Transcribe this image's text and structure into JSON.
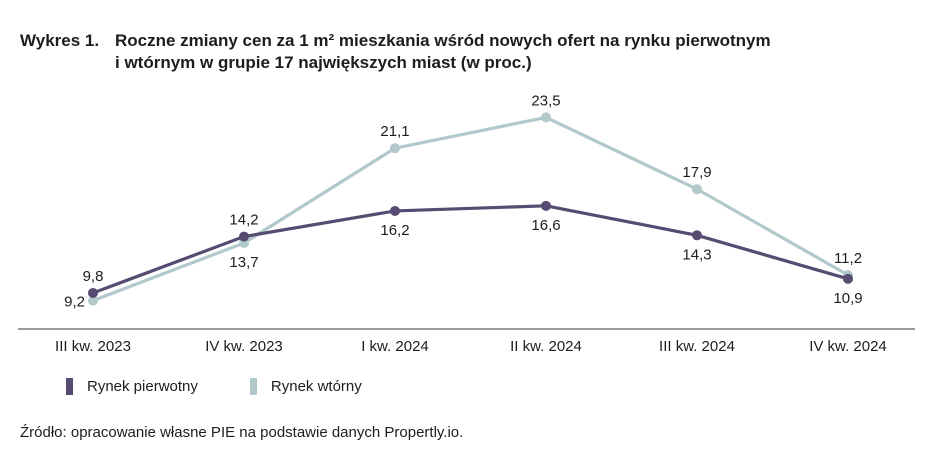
{
  "title": {
    "prefix": "Wykres 1.",
    "line1": "Roczne zmiany cen za 1 m² mieszkania wśród nowych ofert na rynku pierwotnym",
    "line2": "i wtórnym w grupie 17 największych miast (w proc.)"
  },
  "source": "Źródło: opracowanie własne PIE na podstawie danych Propertly.io.",
  "colors": {
    "primary": "#564b70",
    "secondary": "#b2c9cc",
    "axis": "#333333",
    "text": "#1d1d1f"
  },
  "chart_data": {
    "type": "line",
    "title": "Roczne zmiany cen za 1 m² mieszkania wśród nowych ofert na rynku pierwotnym i wtórnym w grupie 17 największych miast (w proc.)",
    "xlabel": "",
    "ylabel": "",
    "ylim": [
      0,
      25
    ],
    "grid": false,
    "legend_position": "bottom-left",
    "categories": [
      "III kw. 2023",
      "IV kw. 2023",
      "I kw. 2024",
      "II kw. 2024",
      "III kw. 2024",
      "IV kw. 2024"
    ],
    "series": [
      {
        "name": "Rynek pierwotny",
        "values": [
          9.8,
          14.2,
          16.2,
          16.6,
          14.3,
          10.9
        ],
        "labels": [
          "9,8",
          "14,2",
          "16,2",
          "16,6",
          "14,3",
          "10,9"
        ],
        "label_positions": [
          "above",
          "above",
          "below",
          "below",
          "below",
          "below"
        ]
      },
      {
        "name": "Rynek wtórny",
        "values": [
          9.2,
          13.7,
          21.1,
          23.5,
          17.9,
          11.2
        ],
        "labels": [
          "9,2",
          "13,7",
          "21,1",
          "23,5",
          "17,9",
          "11,2"
        ],
        "label_positions": [
          "left",
          "below",
          "above",
          "above",
          "above",
          "above"
        ]
      }
    ]
  }
}
